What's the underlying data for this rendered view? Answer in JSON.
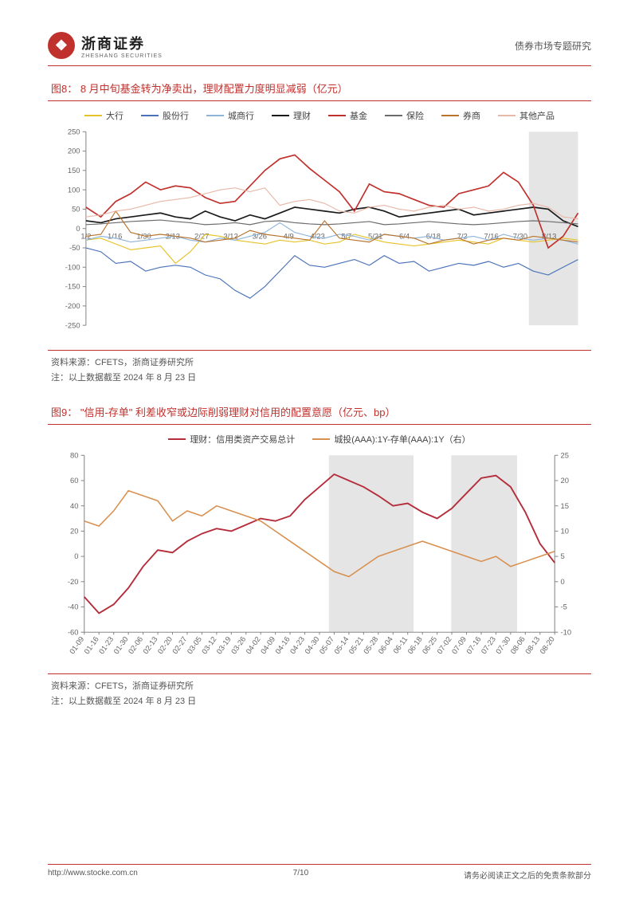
{
  "header": {
    "company_cn": "浙商证券",
    "company_en": "ZHESHANG SECURITIES",
    "doc_type": "债券市场专题研究"
  },
  "figure8": {
    "title": "图8：  8 月中旬基金转为净卖出，理财配置力度明显减弱（亿元）",
    "type": "line",
    "legend": [
      {
        "label": "大行",
        "color": "#e6c228"
      },
      {
        "label": "股份行",
        "color": "#4a72b8"
      },
      {
        "label": "城商行",
        "color": "#8fb4d9"
      },
      {
        "label": "理财",
        "color": "#1a1a1a"
      },
      {
        "label": "基金",
        "color": "#c0302c"
      },
      {
        "label": "保险",
        "color": "#6b6b6b"
      },
      {
        "label": "券商",
        "color": "#b8732c"
      },
      {
        "label": "其他产品",
        "color": "#e8b8a8"
      }
    ],
    "ylim": [
      -250,
      250
    ],
    "ytick_step": 50,
    "x_labels": [
      "1/2",
      "1/16",
      "1/30",
      "2/13",
      "2/27",
      "3/12",
      "3/26",
      "4/9",
      "4/23",
      "5/7",
      "5/21",
      "6/4",
      "6/18",
      "7/2",
      "7/16",
      "7/30",
      "8/13",
      ""
    ],
    "highlight_band": {
      "start": 0.9,
      "end": 1.0,
      "color": "#e5e5e5"
    },
    "background": "#ffffff",
    "grid_color": "#d0d0d0",
    "series": {
      "大行": [
        -30,
        -25,
        -40,
        -55,
        -50,
        -45,
        -90,
        -60,
        -15,
        -20,
        -30,
        -35,
        -40,
        -30,
        -35,
        -30,
        -40,
        -35,
        -15,
        -25,
        -35,
        -40,
        -45,
        -40,
        -35,
        -30,
        -35,
        -40,
        -25,
        -30,
        -35,
        -30,
        -25,
        -30
      ],
      "股份行": [
        -50,
        -60,
        -90,
        -85,
        -110,
        -100,
        -95,
        -100,
        -120,
        -130,
        -160,
        -180,
        -150,
        -110,
        -70,
        -95,
        -100,
        -90,
        -80,
        -95,
        -70,
        -90,
        -85,
        -110,
        -100,
        -90,
        -95,
        -85,
        -100,
        -90,
        -110,
        -120,
        -100,
        -80
      ],
      "城商行": [
        -30,
        -20,
        -25,
        -35,
        -30,
        -25,
        -20,
        -30,
        -35,
        -25,
        -30,
        -20,
        -10,
        15,
        -10,
        -20,
        -25,
        -15,
        -20,
        -30,
        -15,
        -20,
        -25,
        -20,
        -30,
        -25,
        -20,
        -30,
        -15,
        -25,
        -30,
        -25,
        -30,
        -40
      ],
      "理财": [
        20,
        15,
        25,
        30,
        35,
        40,
        30,
        25,
        45,
        30,
        20,
        35,
        25,
        40,
        55,
        50,
        45,
        40,
        50,
        55,
        45,
        30,
        35,
        40,
        45,
        50,
        35,
        40,
        45,
        50,
        55,
        50,
        20,
        5
      ],
      "基金": [
        55,
        30,
        70,
        90,
        120,
        100,
        110,
        105,
        80,
        65,
        70,
        110,
        150,
        180,
        190,
        155,
        125,
        95,
        45,
        115,
        95,
        90,
        75,
        60,
        55,
        90,
        100,
        110,
        145,
        120,
        60,
        -50,
        -20,
        40
      ],
      "保险": [
        10,
        12,
        15,
        18,
        20,
        22,
        18,
        15,
        10,
        12,
        15,
        10,
        18,
        20,
        15,
        12,
        10,
        12,
        15,
        18,
        10,
        12,
        15,
        18,
        15,
        12,
        10,
        12,
        15,
        18,
        20,
        18,
        15,
        12
      ],
      "券商": [
        -20,
        -15,
        45,
        -10,
        -20,
        -15,
        -20,
        -25,
        -35,
        -30,
        -25,
        -5,
        -15,
        -20,
        -25,
        -30,
        20,
        -25,
        -30,
        -35,
        -15,
        -20,
        -25,
        -40,
        -30,
        -25,
        -40,
        -30,
        -25,
        -30,
        -20,
        -25,
        -30,
        -35
      ],
      "其他产品": [
        30,
        35,
        45,
        50,
        60,
        70,
        75,
        80,
        90,
        100,
        105,
        95,
        105,
        60,
        70,
        75,
        65,
        45,
        40,
        55,
        60,
        50,
        45,
        55,
        60,
        50,
        55,
        45,
        50,
        60,
        65,
        55,
        30,
        25
      ]
    },
    "source": "资料来源：CFETS，浙商证券研究所",
    "note": "注：以上数据截至 2024 年 8 月 23 日"
  },
  "figure9": {
    "title": "图9：  \"信用-存单\" 利差收窄或边际削弱理财对信用的配置意愿（亿元、bp）",
    "type": "line",
    "legend": [
      {
        "label": "理财：信用类资产交易总计",
        "color": "#b52c3a"
      },
      {
        "label": "城投(AAA):1Y-存单(AAA):1Y（右）",
        "color": "#d89050"
      }
    ],
    "ylim_left": [
      -60,
      80
    ],
    "ytick_left_step": 20,
    "ylim_right": [
      -10,
      25
    ],
    "ytick_right_step": 5,
    "x_labels": [
      "01-09",
      "01-16",
      "01-23",
      "01-30",
      "02-06",
      "02-13",
      "02-20",
      "02-27",
      "03-05",
      "03-12",
      "03-19",
      "03-26",
      "04-02",
      "04-09",
      "04-16",
      "04-23",
      "04-30",
      "05-07",
      "05-14",
      "05-21",
      "05-28",
      "06-04",
      "06-11",
      "06-18",
      "06-25",
      "07-02",
      "07-09",
      "07-16",
      "07-23",
      "07-30",
      "08-06",
      "08-13",
      "08-20"
    ],
    "bands": [
      {
        "start": 0.52,
        "end": 0.7,
        "color": "#e5e5e5"
      },
      {
        "start": 0.78,
        "end": 0.92,
        "color": "#e5e5e5"
      }
    ],
    "background": "#ffffff",
    "series_left": {
      "理财信用": [
        -32,
        -45,
        -38,
        -25,
        -8,
        5,
        3,
        12,
        18,
        22,
        20,
        25,
        30,
        28,
        32,
        45,
        55,
        65,
        60,
        55,
        48,
        40,
        42,
        35,
        30,
        38,
        50,
        62,
        64,
        55,
        35,
        10,
        -5
      ]
    },
    "series_right": {
      "城投利差": [
        12,
        11,
        14,
        18,
        17,
        16,
        12,
        14,
        13,
        15,
        14,
        13,
        12,
        10,
        8,
        6,
        4,
        2,
        1,
        3,
        5,
        6,
        7,
        8,
        7,
        6,
        5,
        4,
        5,
        3,
        4,
        5,
        6
      ]
    },
    "source": "资料来源：CFETS，浙商证券研究所",
    "note": "注：以上数据截至 2024 年 8 月 23 日"
  },
  "footer": {
    "url": "http://www.stocke.com.cn",
    "page": "7/10",
    "disclaimer": "请务必阅读正文之后的免责条款部分"
  }
}
